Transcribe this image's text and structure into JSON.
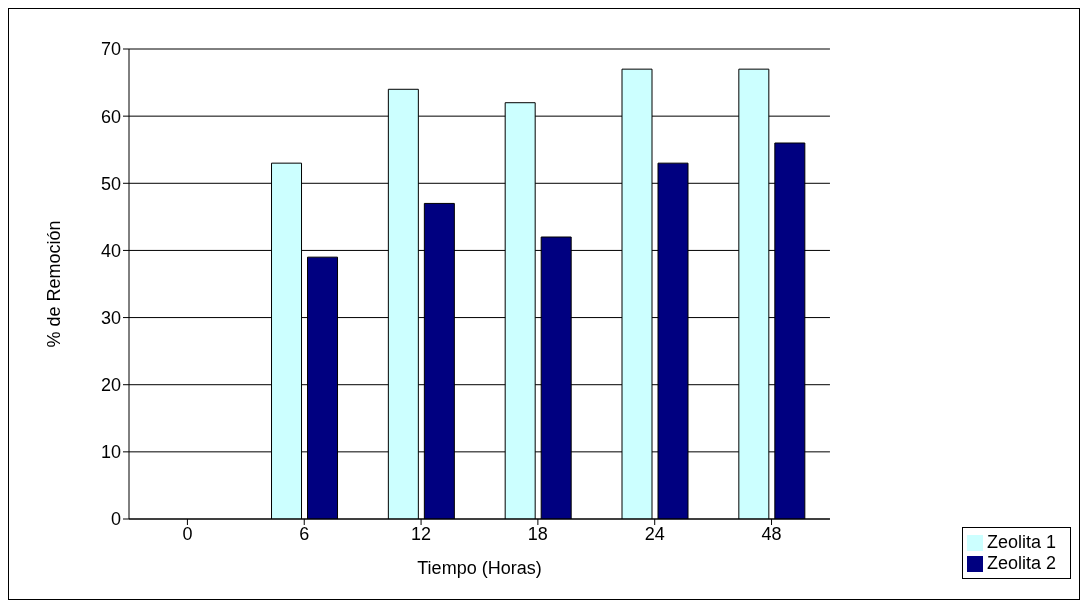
{
  "chart_data": {
    "type": "bar",
    "xlabel": "Tiempo (Horas)",
    "ylabel": "% de Remoción",
    "categories": [
      "0",
      "6",
      "12",
      "18",
      "24",
      "48"
    ],
    "series": [
      {
        "name": "Zeolita 1",
        "color": "#ccffff",
        "values": [
          0,
          53,
          64,
          62,
          67,
          67
        ]
      },
      {
        "name": "Zeolita 2",
        "color": "#000080",
        "values": [
          0,
          39,
          47,
          42,
          53,
          56
        ]
      }
    ],
    "ylim": [
      0,
      70
    ],
    "yticks": [
      0,
      10,
      20,
      30,
      40,
      50,
      60,
      70
    ],
    "grid": "y",
    "legend": "bottom right"
  }
}
